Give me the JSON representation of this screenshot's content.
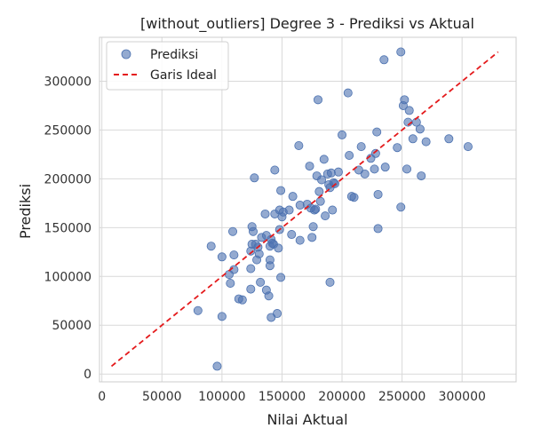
{
  "chart_data": {
    "type": "scatter",
    "title": "[without_outliers] Degree 3 - Prediksi vs Aktual",
    "xlabel": "Nilai Aktual",
    "ylabel": "Prediksi",
    "xlim": [
      -2000,
      345000
    ],
    "ylim": [
      -8000,
      345000
    ],
    "xticks": [
      0,
      50000,
      100000,
      150000,
      200000,
      250000,
      300000
    ],
    "yticks": [
      0,
      50000,
      100000,
      150000,
      200000,
      250000,
      300000
    ],
    "xtick_labels": [
      "0",
      "50000",
      "100000",
      "150000",
      "200000",
      "250000",
      "300000"
    ],
    "ytick_labels": [
      "0",
      "50000",
      "100000",
      "150000",
      "200000",
      "250000",
      "300000"
    ],
    "grid": true,
    "legend_position": "top-left",
    "series": [
      {
        "name": "Prediksi",
        "kind": "scatter",
        "color": "#4c72b0",
        "points": [
          [
            96000,
            8000
          ],
          [
            80000,
            65000
          ],
          [
            100000,
            59000
          ],
          [
            91000,
            131000
          ],
          [
            100000,
            120000
          ],
          [
            106000,
            102000
          ],
          [
            107000,
            93000
          ],
          [
            110000,
            107000
          ],
          [
            110000,
            122000
          ],
          [
            109000,
            146000
          ],
          [
            114000,
            77000
          ],
          [
            117000,
            76000
          ],
          [
            124000,
            87000
          ],
          [
            124000,
            108000
          ],
          [
            124000,
            126000
          ],
          [
            125000,
            133000
          ],
          [
            125000,
            151000
          ],
          [
            126000,
            146000
          ],
          [
            127000,
            201000
          ],
          [
            128000,
            133000
          ],
          [
            129000,
            117000
          ],
          [
            130000,
            130000
          ],
          [
            131000,
            123000
          ],
          [
            132000,
            94000
          ],
          [
            133000,
            140000
          ],
          [
            136000,
            164000
          ],
          [
            137000,
            142000
          ],
          [
            137000,
            86000
          ],
          [
            139000,
            80000
          ],
          [
            140000,
            111000
          ],
          [
            140000,
            117000
          ],
          [
            140000,
            131000
          ],
          [
            141000,
            58000
          ],
          [
            141000,
            138000
          ],
          [
            142000,
            134000
          ],
          [
            143000,
            133000
          ],
          [
            144000,
            209000
          ],
          [
            144000,
            164000
          ],
          [
            146000,
            62000
          ],
          [
            147000,
            129000
          ],
          [
            148000,
            148000
          ],
          [
            148000,
            168000
          ],
          [
            149000,
            99000
          ],
          [
            149000,
            188000
          ],
          [
            150000,
            161000
          ],
          [
            151000,
            166000
          ],
          [
            156000,
            168000
          ],
          [
            158000,
            143000
          ],
          [
            159000,
            182000
          ],
          [
            164000,
            234000
          ],
          [
            165000,
            173000
          ],
          [
            165000,
            137000
          ],
          [
            171000,
            174000
          ],
          [
            173000,
            213000
          ],
          [
            174000,
            170000
          ],
          [
            175000,
            140000
          ],
          [
            176000,
            151000
          ],
          [
            177000,
            168000
          ],
          [
            178000,
            169000
          ],
          [
            179000,
            203000
          ],
          [
            180000,
            281000
          ],
          [
            181000,
            187000
          ],
          [
            182000,
            177000
          ],
          [
            183000,
            199000
          ],
          [
            185000,
            220000
          ],
          [
            186000,
            162000
          ],
          [
            188000,
            205000
          ],
          [
            189000,
            194000
          ],
          [
            190000,
            94000
          ],
          [
            190000,
            191000
          ],
          [
            191000,
            206000
          ],
          [
            192000,
            168000
          ],
          [
            193000,
            196000
          ],
          [
            194000,
            195000
          ],
          [
            197000,
            207000
          ],
          [
            200000,
            245000
          ],
          [
            205000,
            288000
          ],
          [
            206000,
            224000
          ],
          [
            208000,
            182000
          ],
          [
            210000,
            181000
          ],
          [
            214000,
            209000
          ],
          [
            216000,
            233000
          ],
          [
            219000,
            205000
          ],
          [
            224000,
            221000
          ],
          [
            227000,
            210000
          ],
          [
            228000,
            226000
          ],
          [
            229000,
            248000
          ],
          [
            230000,
            184000
          ],
          [
            230000,
            149000
          ],
          [
            235000,
            322000
          ],
          [
            236000,
            212000
          ],
          [
            246000,
            232000
          ],
          [
            249000,
            330000
          ],
          [
            249000,
            171000
          ],
          [
            251000,
            275000
          ],
          [
            252000,
            281000
          ],
          [
            254000,
            210000
          ],
          [
            255000,
            258000
          ],
          [
            256000,
            270000
          ],
          [
            259000,
            241000
          ],
          [
            262000,
            258000
          ],
          [
            265000,
            251000
          ],
          [
            266000,
            203000
          ],
          [
            270000,
            238000
          ],
          [
            289000,
            241000
          ],
          [
            305000,
            233000
          ]
        ]
      },
      {
        "name": "Garis Ideal",
        "kind": "line",
        "style": "dashed",
        "color": "#e41a1c",
        "points": [
          [
            8000,
            8000
          ],
          [
            330000,
            330000
          ]
        ]
      }
    ]
  }
}
